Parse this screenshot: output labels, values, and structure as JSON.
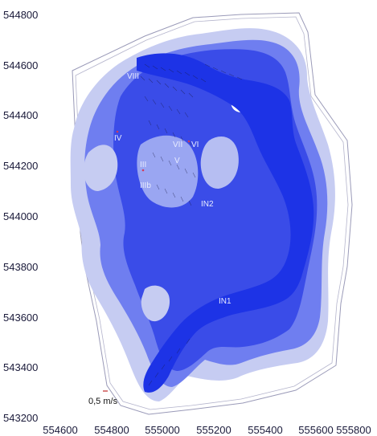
{
  "chart_data": {
    "type": "map",
    "title": "",
    "xlabel": "",
    "ylabel": "",
    "xlim": [
      554600,
      555800
    ],
    "ylim": [
      543200,
      544800
    ],
    "x_ticks": [
      "554600",
      "554800",
      "555000",
      "555200",
      "555400",
      "555600",
      "555800"
    ],
    "y_ticks": [
      "544800",
      "544600",
      "544400",
      "544200",
      "544000",
      "543800",
      "543600",
      "543400",
      "543200"
    ],
    "site_labels": [
      {
        "text": "VIII",
        "x": 554840,
        "y": 544580
      },
      {
        "text": "IV",
        "x": 554690,
        "y": 544300
      },
      {
        "text": "VII",
        "x": 555030,
        "y": 544280
      },
      {
        "text": "VI",
        "x": 555090,
        "y": 544280
      },
      {
        "text": "III",
        "x": 554800,
        "y": 544190
      },
      {
        "text": "V",
        "x": 555030,
        "y": 544210
      },
      {
        "text": "IIIb",
        "x": 554815,
        "y": 544110
      },
      {
        "text": "IN2",
        "x": 555170,
        "y": 544040
      },
      {
        "text": "IN1",
        "x": 555220,
        "y": 543650
      }
    ],
    "vector_scale_label": "0,5 m/s",
    "colors": {
      "grid_boundary": "#9a9ab8",
      "light_blue": "#c6ccf2",
      "mid_blue": "#6f7ef0",
      "deep_blue": "#3a4ce8",
      "channel_blue": "#1d33e6",
      "vectors": "#1a1a40"
    }
  }
}
